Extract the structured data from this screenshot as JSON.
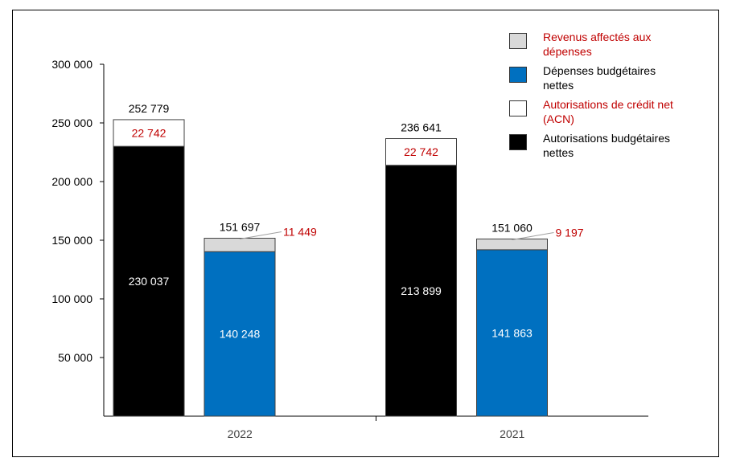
{
  "chart_data": {
    "type": "bar",
    "stacked": true,
    "categories": [
      "2022",
      "2021"
    ],
    "ylim": [
      0,
      300000
    ],
    "yticks": [
      50000,
      100000,
      150000,
      200000,
      250000,
      300000
    ],
    "ytick_labels": [
      "50 000",
      "100 000",
      "150 000",
      "200 000",
      "250 000",
      "300 000"
    ],
    "grid": false,
    "legend_position": "top-right",
    "groups": [
      {
        "category": "2022",
        "bars": [
          {
            "segments": [
              {
                "series": "Autorisations budgétaires nettes",
                "value": 230037,
                "label": "230 037"
              },
              {
                "series": "Autorisations de crédit net (ACN)",
                "value": 22742,
                "label": "22 742"
              }
            ],
            "total_label": "252 779"
          },
          {
            "segments": [
              {
                "series": "Dépenses budgétaires nettes",
                "value": 140248,
                "label": "140 248"
              },
              {
                "series": "Revenus affectés aux dépenses",
                "value": 11449,
                "label": "11 449"
              }
            ],
            "total_label": "151 697"
          }
        ]
      },
      {
        "category": "2021",
        "bars": [
          {
            "segments": [
              {
                "series": "Autorisations budgétaires nettes",
                "value": 213899,
                "label": "213 899"
              },
              {
                "series": "Autorisations de crédit net (ACN)",
                "value": 22742,
                "label": "22 742"
              }
            ],
            "total_label": "236 641"
          },
          {
            "segments": [
              {
                "series": "Dépenses budgétaires nettes",
                "value": 141863,
                "label": "141 863"
              },
              {
                "series": "Revenus affectés aux dépenses",
                "value": 9197,
                "label": "9 197"
              }
            ],
            "total_label": "151 060"
          }
        ]
      }
    ],
    "legend": [
      {
        "name": "Revenus affectés aux dépenses",
        "color": "#d9d9d9",
        "text_color": "#c00000"
      },
      {
        "name": "Dépenses budgétaires nettes",
        "color": "#0070c0",
        "text_color": "#000000"
      },
      {
        "name": "Autorisations de crédit net (ACN)",
        "color": "#ffffff",
        "text_color": "#c00000"
      },
      {
        "name": "Autorisations budgétaires nettes",
        "color": "#000000",
        "text_color": "#000000"
      }
    ],
    "series_styles": {
      "Autorisations budgétaires nettes": {
        "fill": "#000000",
        "label_color": "#ffffff"
      },
      "Autorisations de crédit net (ACN)": {
        "fill": "#ffffff",
        "label_color": "#c00000"
      },
      "Dépenses budgétaires nettes": {
        "fill": "#0070c0",
        "label_color": "#ffffff"
      },
      "Revenus affectés aux dépenses": {
        "fill": "#d9d9d9",
        "label_color": "#c00000"
      }
    }
  }
}
